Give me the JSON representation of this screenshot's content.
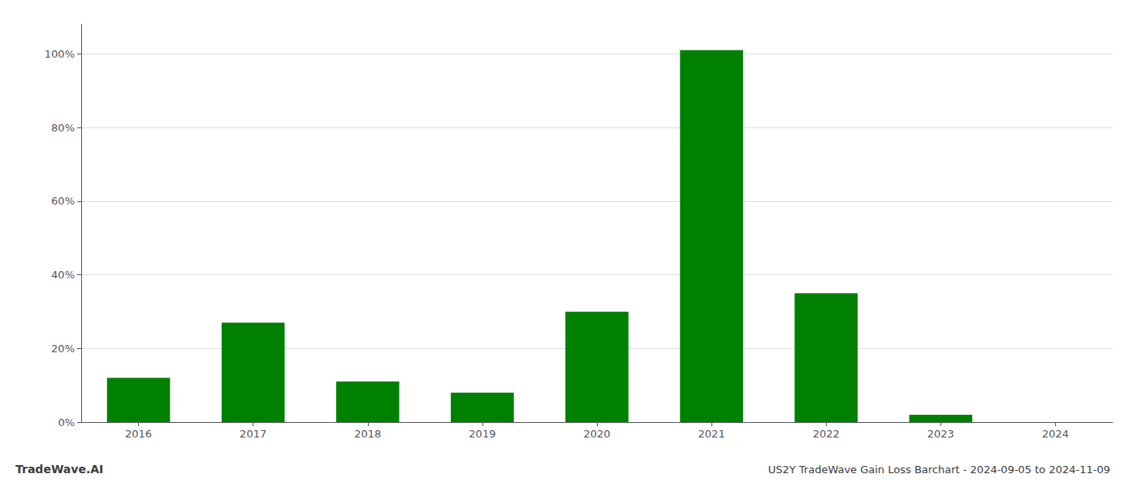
{
  "chart_data": {
    "type": "bar",
    "title": "US2Y TradeWave Gain Loss Barchart - 2024-09-05 to 2024-11-09",
    "annotations": [
      "TradeWave.AI"
    ],
    "categories": [
      "2016",
      "2017",
      "2018",
      "2019",
      "2020",
      "2021",
      "2022",
      "2023",
      "2024"
    ],
    "values": [
      12.0,
      27.0,
      11.0,
      8.0,
      30.0,
      101.0,
      35.0,
      2.0,
      0.0
    ],
    "color": "#008000",
    "ylim": [
      0,
      108
    ],
    "yticks": [
      {
        "value": 0,
        "label": "0%"
      },
      {
        "value": 20,
        "label": "20%"
      },
      {
        "value": 40,
        "label": "40%"
      },
      {
        "value": 60,
        "label": "60%"
      },
      {
        "value": 80,
        "label": "80%"
      },
      {
        "value": 100,
        "label": "100%"
      }
    ],
    "grid": true
  }
}
